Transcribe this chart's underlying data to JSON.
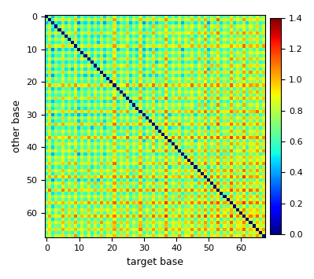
{
  "xlabel": "target base",
  "ylabel": "other base",
  "cmap": "jet",
  "vmin": 0,
  "vmax": 1.4,
  "colorbar_ticks": [
    0,
    0.2,
    0.4,
    0.6,
    0.8,
    1.0,
    1.2,
    1.4
  ],
  "n": 68,
  "xticks": [
    0,
    10,
    20,
    30,
    40,
    50,
    60
  ],
  "yticks": [
    0,
    10,
    20,
    30,
    40,
    50,
    60
  ],
  "seed": 123
}
